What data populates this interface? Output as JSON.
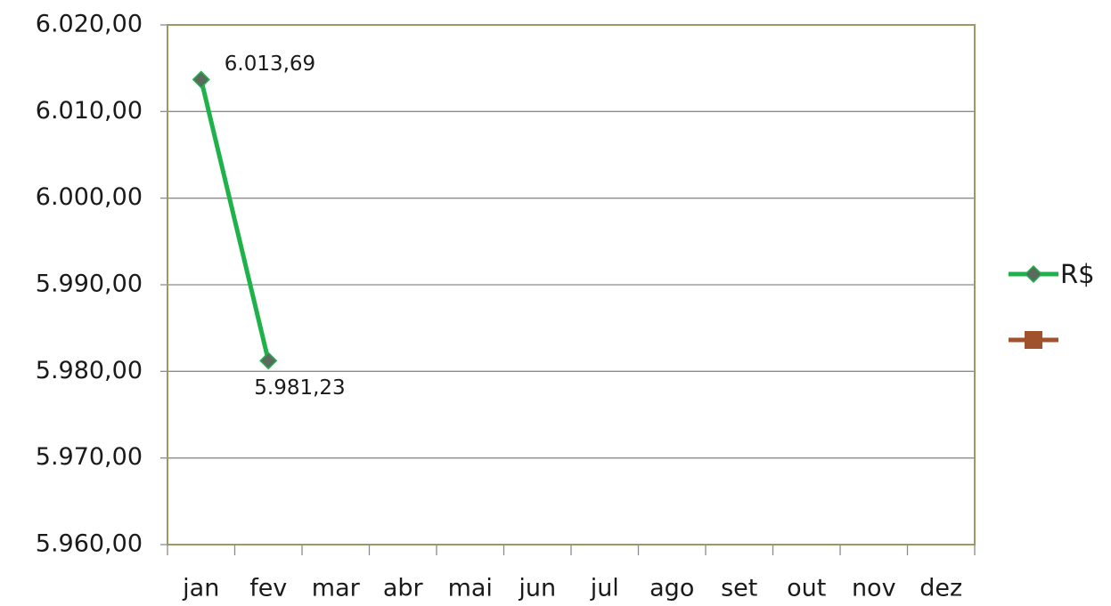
{
  "chart_data": {
    "type": "line",
    "categories": [
      "jan",
      "fev",
      "mar",
      "abr",
      "mai",
      "jun",
      "jul",
      "ago",
      "set",
      "out",
      "nov",
      "dez"
    ],
    "series": [
      {
        "name": "R$",
        "color": "#1fb24a",
        "marker": "diamond",
        "marker_color": "#5a6b5e",
        "values": [
          6013.69,
          5981.23,
          null,
          null,
          null,
          null,
          null,
          null,
          null,
          null,
          null,
          null
        ],
        "value_labels": [
          "6.013,69",
          "5.981,23",
          null,
          null,
          null,
          null,
          null,
          null,
          null,
          null,
          null,
          null
        ]
      },
      {
        "color": "#a0522d",
        "marker": "square",
        "values": [
          null,
          null,
          null,
          null,
          null,
          null,
          null,
          null,
          null,
          null,
          null,
          null
        ]
      }
    ],
    "ylim": [
      5960,
      6020
    ],
    "yticks": [
      {
        "value": 5960,
        "label": "5.960,00"
      },
      {
        "value": 5970,
        "label": "5.970,00"
      },
      {
        "value": 5980,
        "label": "5.980,00"
      },
      {
        "value": 5990,
        "label": "5.990,00"
      },
      {
        "value": 6000,
        "label": "6.000,00"
      },
      {
        "value": 6010,
        "label": "6.010,00"
      },
      {
        "value": 6020,
        "label": "6.020,00"
      }
    ],
    "grid": true,
    "legend": "right"
  }
}
